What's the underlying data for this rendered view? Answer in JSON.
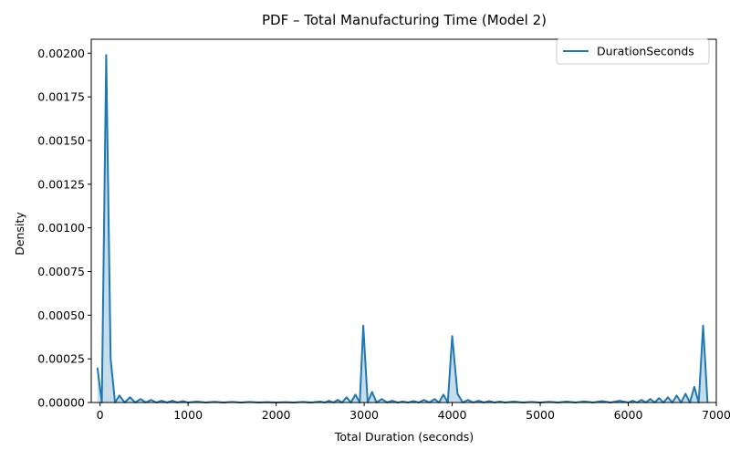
{
  "chart_data": {
    "type": "area",
    "title": "PDF – Total Manufacturing Time (Model 2)",
    "xlabel": "Total Duration (seconds)",
    "ylabel": "Density",
    "xlim": [
      -100,
      7000
    ],
    "ylim": [
      0,
      0.00208
    ],
    "x_ticks": [
      0,
      1000,
      2000,
      3000,
      4000,
      5000,
      6000,
      7000
    ],
    "x_tick_labels": [
      "0",
      "1000",
      "2000",
      "3000",
      "4000",
      "5000",
      "6000",
      "7000"
    ],
    "y_ticks": [
      0,
      0.00025,
      0.0005,
      0.00075,
      0.001,
      0.00125,
      0.0015,
      0.00175,
      0.002
    ],
    "y_tick_labels": [
      "0.00000",
      "0.00025",
      "0.00050",
      "0.00075",
      "0.00100",
      "0.00125",
      "0.00150",
      "0.00175",
      "0.00200"
    ],
    "grid": false,
    "legend_position": "top-right",
    "series": [
      {
        "name": "DurationSeconds",
        "color": "#1f77b4",
        "fill_color": "#1f77b4",
        "fill_opacity": 0.25,
        "x": [
          -30,
          20,
          70,
          120,
          170,
          220,
          280,
          340,
          400,
          460,
          520,
          580,
          640,
          700,
          760,
          820,
          880,
          940,
          1000,
          1100,
          1200,
          1300,
          1400,
          1500,
          1600,
          1700,
          1800,
          1900,
          2000,
          2100,
          2200,
          2300,
          2400,
          2500,
          2550,
          2600,
          2650,
          2700,
          2750,
          2800,
          2850,
          2900,
          2950,
          2990,
          3040,
          3090,
          3140,
          3200,
          3260,
          3320,
          3380,
          3440,
          3500,
          3560,
          3620,
          3680,
          3740,
          3800,
          3850,
          3900,
          3950,
          4000,
          4060,
          4120,
          4180,
          4240,
          4300,
          4360,
          4420,
          4480,
          4540,
          4600,
          4700,
          4800,
          4900,
          5000,
          5100,
          5200,
          5300,
          5400,
          5500,
          5600,
          5700,
          5800,
          5900,
          6000,
          6050,
          6100,
          6150,
          6200,
          6250,
          6300,
          6350,
          6400,
          6450,
          6500,
          6550,
          6600,
          6650,
          6700,
          6750,
          6800,
          6850,
          6900
        ],
        "y": [
          0.0002,
          0.0,
          0.00199,
          0.00025,
          0.0,
          4e-05,
          0.0,
          3e-05,
          0.0,
          2e-05,
          0.0,
          1.5e-05,
          0.0,
          1e-05,
          0.0,
          1e-05,
          0.0,
          8e-06,
          0.0,
          5e-06,
          0.0,
          4e-06,
          0.0,
          3e-06,
          0.0,
          3e-06,
          0.0,
          2e-06,
          0.0,
          2e-06,
          0.0,
          3e-06,
          0.0,
          5e-06,
          0.0,
          1e-05,
          0.0,
          1.5e-05,
          0.0,
          3e-05,
          0.0,
          4.5e-05,
          0.0,
          0.00044,
          0.0,
          6e-05,
          0.0,
          2e-05,
          0.0,
          1e-05,
          0.0,
          5e-06,
          0.0,
          8e-06,
          0.0,
          1.5e-05,
          0.0,
          2e-05,
          0.0,
          4.5e-05,
          0.0,
          0.00038,
          5e-05,
          0.0,
          1.5e-05,
          0.0,
          1e-05,
          0.0,
          8e-06,
          0.0,
          5e-06,
          0.0,
          5e-06,
          0.0,
          3e-06,
          0.0,
          4e-06,
          0.0,
          5e-06,
          0.0,
          6e-06,
          0.0,
          8e-06,
          0.0,
          1e-05,
          0.0,
          1e-05,
          0.0,
          1.5e-05,
          0.0,
          2e-05,
          0.0,
          2.5e-05,
          0.0,
          3e-05,
          0.0,
          4e-05,
          0.0,
          5e-05,
          0.0,
          9e-05,
          0.0,
          0.00044,
          0.0
        ]
      }
    ]
  }
}
